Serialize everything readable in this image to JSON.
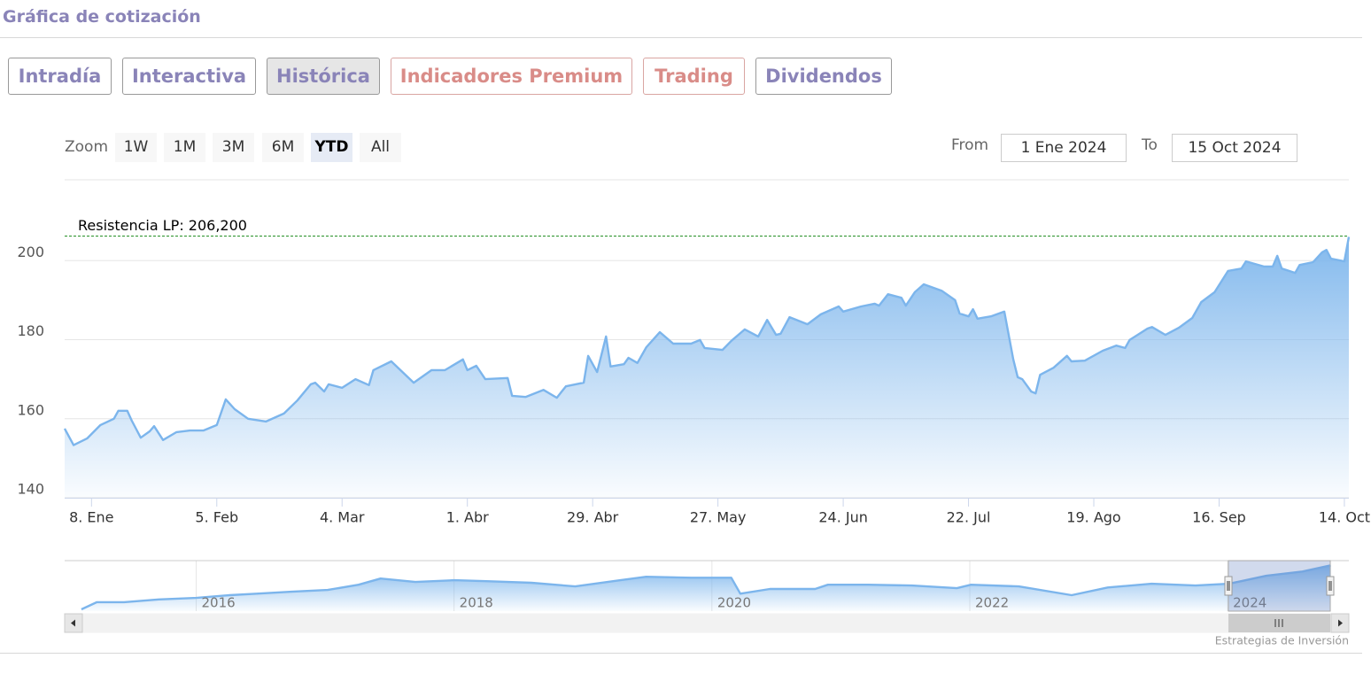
{
  "header": {
    "title": "Gráfica de cotización"
  },
  "tabs": [
    "Intradía",
    "Interactiva",
    "Histórica",
    "Indicadores Premium",
    "Trading",
    "Dividendos"
  ],
  "zoom": {
    "label": "Zoom",
    "buttons": [
      "1W",
      "1M",
      "3M",
      "6M",
      "YTD",
      "All"
    ]
  },
  "range": {
    "from_label": "From",
    "from": "1 Ene 2024",
    "to_label": "To",
    "to": "15 Oct 2024"
  },
  "credit": "Estrategias de Inversión",
  "chart_data": [
    {
      "type": "area",
      "color": "#7cb5ec",
      "annotations": [
        {
          "label": "Resistencia LP: 206,200",
          "value": 206.2,
          "color": "#1a8a1a"
        }
      ],
      "xlim": [
        "2024-01-02",
        "2024-10-15"
      ],
      "xticks": [
        {
          "value": "2024-01-08",
          "label": "8. Ene"
        },
        {
          "value": "2024-02-05",
          "label": "5. Feb"
        },
        {
          "value": "2024-03-04",
          "label": "4. Mar"
        },
        {
          "value": "2024-04-01",
          "label": "1. Abr"
        },
        {
          "value": "2024-04-29",
          "label": "29. Abr"
        },
        {
          "value": "2024-05-27",
          "label": "27. May"
        },
        {
          "value": "2024-06-24",
          "label": "24. Jun"
        },
        {
          "value": "2024-07-22",
          "label": "22. Jul"
        },
        {
          "value": "2024-08-19",
          "label": "19. Ago"
        },
        {
          "value": "2024-09-16",
          "label": "16. Sep"
        },
        {
          "value": "2024-10-14",
          "label": "14. Oct"
        }
      ],
      "ylim": [
        140,
        220
      ],
      "yticks": [
        140,
        160,
        180,
        200
      ],
      "grid": true,
      "x": [
        "2024-01-02",
        "2024-01-04",
        "2024-01-07",
        "2024-01-10",
        "2024-01-13",
        "2024-01-14",
        "2024-01-16",
        "2024-01-17",
        "2024-01-19",
        "2024-01-21",
        "2024-01-22",
        "2024-01-24",
        "2024-01-27",
        "2024-01-30",
        "2024-02-02",
        "2024-02-05",
        "2024-02-07",
        "2024-02-09",
        "2024-02-12",
        "2024-02-16",
        "2024-02-20",
        "2024-02-23",
        "2024-02-26",
        "2024-02-27",
        "2024-02-29",
        "2024-03-01",
        "2024-03-04",
        "2024-03-07",
        "2024-03-10",
        "2024-03-11",
        "2024-03-15",
        "2024-03-20",
        "2024-03-24",
        "2024-03-27",
        "2024-03-31",
        "2024-04-01",
        "2024-04-03",
        "2024-04-05",
        "2024-04-10",
        "2024-04-11",
        "2024-04-14",
        "2024-04-18",
        "2024-04-21",
        "2024-04-23",
        "2024-04-27",
        "2024-04-28",
        "2024-04-30",
        "2024-05-02",
        "2024-05-03",
        "2024-05-06",
        "2024-05-07",
        "2024-05-09",
        "2024-05-11",
        "2024-05-14",
        "2024-05-17",
        "2024-05-21",
        "2024-05-23",
        "2024-05-24",
        "2024-05-28",
        "2024-05-30",
        "2024-06-02",
        "2024-06-05",
        "2024-06-07",
        "2024-06-09",
        "2024-06-10",
        "2024-06-12",
        "2024-06-16",
        "2024-06-19",
        "2024-06-23",
        "2024-06-24",
        "2024-06-28",
        "2024-07-01",
        "2024-07-02",
        "2024-07-04",
        "2024-07-07",
        "2024-07-08",
        "2024-07-10",
        "2024-07-12",
        "2024-07-16",
        "2024-07-19",
        "2024-07-20",
        "2024-07-22",
        "2024-07-23",
        "2024-07-24",
        "2024-07-27",
        "2024-07-30",
        "2024-08-01",
        "2024-08-02",
        "2024-08-03",
        "2024-08-05",
        "2024-08-06",
        "2024-08-07",
        "2024-08-10",
        "2024-08-13",
        "2024-08-14",
        "2024-08-17",
        "2024-08-21",
        "2024-08-24",
        "2024-08-26",
        "2024-08-27",
        "2024-08-31",
        "2024-09-01",
        "2024-09-04",
        "2024-09-07",
        "2024-09-10",
        "2024-09-12",
        "2024-09-15",
        "2024-09-18",
        "2024-09-21",
        "2024-09-22",
        "2024-09-26",
        "2024-09-28",
        "2024-09-29",
        "2024-09-30",
        "2024-10-03",
        "2024-10-04",
        "2024-10-07",
        "2024-10-09",
        "2024-10-10",
        "2024-10-11",
        "2024-10-14",
        "2024-10-15"
      ],
      "values": [
        157.5,
        153.3,
        155,
        158.4,
        160,
        162,
        162,
        159.5,
        155.2,
        156.8,
        158.1,
        154.6,
        156.6,
        157,
        157,
        158.4,
        164.9,
        162.4,
        160,
        159.3,
        161.3,
        164.6,
        168.7,
        169.1,
        166.9,
        168.7,
        167.8,
        170,
        168.5,
        172.3,
        174.5,
        169.1,
        172.3,
        172.3,
        175,
        172.3,
        173.4,
        170,
        170.3,
        165.8,
        165.5,
        167.3,
        165.3,
        168.2,
        169.1,
        175.9,
        171.8,
        180.8,
        173.2,
        173.8,
        175.4,
        174.1,
        178.1,
        181.9,
        179,
        179,
        179.9,
        177.9,
        177.4,
        179.7,
        182.6,
        180.8,
        185,
        181.2,
        181.5,
        185.7,
        183.9,
        186.4,
        188.4,
        187.1,
        188.4,
        189.1,
        188.6,
        191.5,
        190.6,
        188.6,
        192,
        194,
        192.4,
        190,
        186.6,
        185.9,
        187.7,
        185.3,
        185.9,
        187.1,
        175,
        170.5,
        170,
        166.9,
        166.4,
        171.1,
        172.9,
        175.9,
        174.5,
        174.7,
        177.2,
        178.5,
        177.9,
        179.9,
        182.8,
        183.2,
        181.2,
        183,
        185.5,
        189.5,
        192,
        197.4,
        198,
        199.8,
        198.5,
        198.5,
        201.2,
        198,
        196.9,
        198.9,
        199.6,
        202.1,
        202.7,
        200.5,
        199.8,
        206
      ]
    },
    {
      "type": "navigator",
      "color": "#7cb5ec",
      "xlim": [
        2014.98,
        2024.94
      ],
      "xticks": [
        2016,
        2018,
        2020,
        2022,
        2024
      ],
      "ylim": [
        87,
        217
      ],
      "x": [
        2015.11,
        2015.23,
        2015.44,
        2015.71,
        2016,
        2016.26,
        2016.47,
        2016.74,
        2017.02,
        2017.26,
        2017.43,
        2017.7,
        2018,
        2018.25,
        2018.6,
        2018.94,
        2019.29,
        2019.49,
        2019.84,
        2020,
        2020.15,
        2020.22,
        2020.45,
        2020.8,
        2020.9,
        2021.21,
        2021.55,
        2021.9,
        2022.01,
        2022.38,
        2022.79,
        2023.07,
        2023.41,
        2023.75,
        2024.01,
        2024.3,
        2024.58,
        2024.8
      ],
      "values": [
        91.5,
        110,
        110,
        117,
        121,
        128,
        132,
        137,
        141.5,
        155,
        171,
        162,
        166.5,
        164,
        160,
        150.6,
        166.5,
        175.6,
        173,
        173,
        173,
        132,
        144,
        144,
        155,
        155,
        153,
        146,
        155,
        150.6,
        128,
        148,
        157.5,
        153,
        157.5,
        178,
        189,
        205
      ]
    }
  ]
}
